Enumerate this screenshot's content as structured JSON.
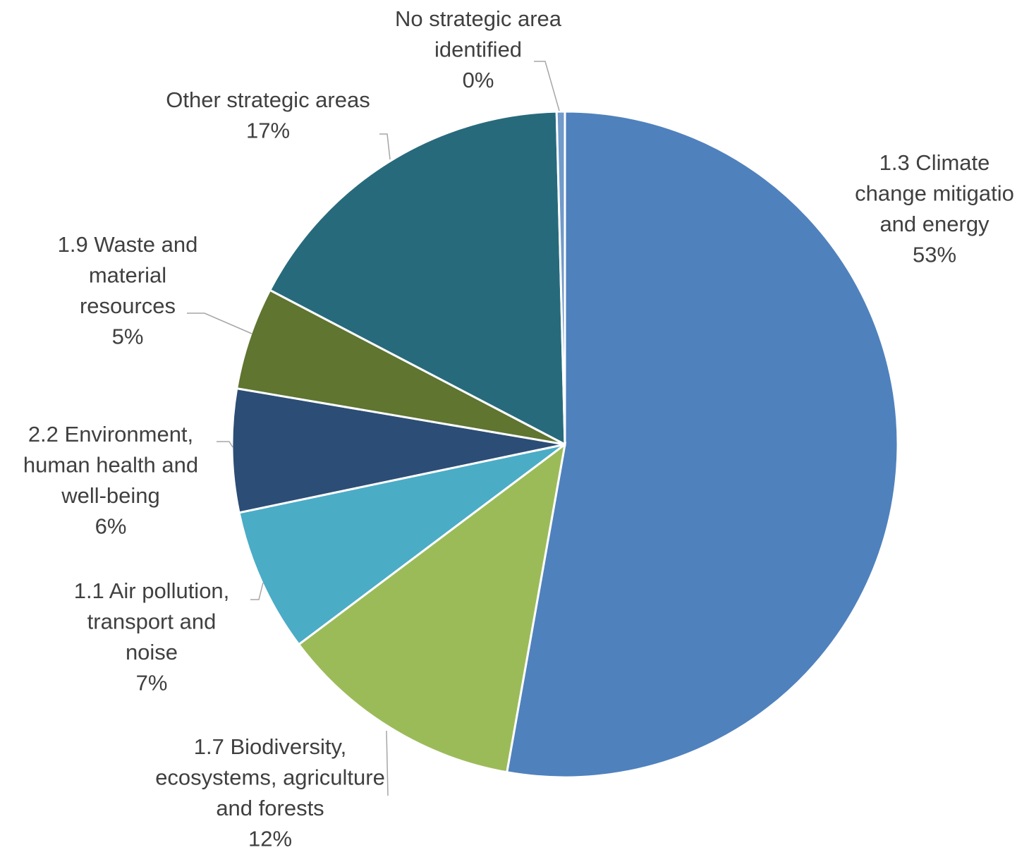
{
  "chart_data": {
    "type": "pie",
    "title": "",
    "slices": [
      {
        "name": "1.3 Climate change mitigation and energy",
        "label_lines": [
          "1.3 Climate",
          "change mitigatio",
          "and energy"
        ],
        "percent_label": "53%",
        "value": 53,
        "color": "#4f81bd"
      },
      {
        "name": "1.7 Biodiversity, ecosystems, agriculture and forests",
        "label_lines": [
          "1.7 Biodiversity,",
          "ecosystems, agriculture",
          "and forests"
        ],
        "percent_label": "12%",
        "value": 12,
        "color": "#9bbb59"
      },
      {
        "name": "1.1 Air pollution, transport and noise",
        "label_lines": [
          "1.1 Air pollution,",
          "transport and",
          "noise"
        ],
        "percent_label": "7%",
        "value": 7,
        "color": "#4bacc6"
      },
      {
        "name": "2.2 Environment, human health and well-being",
        "label_lines": [
          "2.2 Environment,",
          "human health and",
          "well-being"
        ],
        "percent_label": "6%",
        "value": 6,
        "color": "#2c4d75"
      },
      {
        "name": "1.9 Waste and material resources",
        "label_lines": [
          "1.9 Waste and",
          "material",
          "resources"
        ],
        "percent_label": "5%",
        "value": 5,
        "color": "#5f7530"
      },
      {
        "name": "Other strategic areas",
        "label_lines": [
          "Other strategic areas"
        ],
        "percent_label": "17%",
        "value": 17,
        "color": "#276a7c"
      },
      {
        "name": "No strategic area identified",
        "label_lines": [
          "No strategic area",
          "identified"
        ],
        "percent_label": "0%",
        "value": 0.4,
        "color": "#729aca"
      }
    ]
  }
}
